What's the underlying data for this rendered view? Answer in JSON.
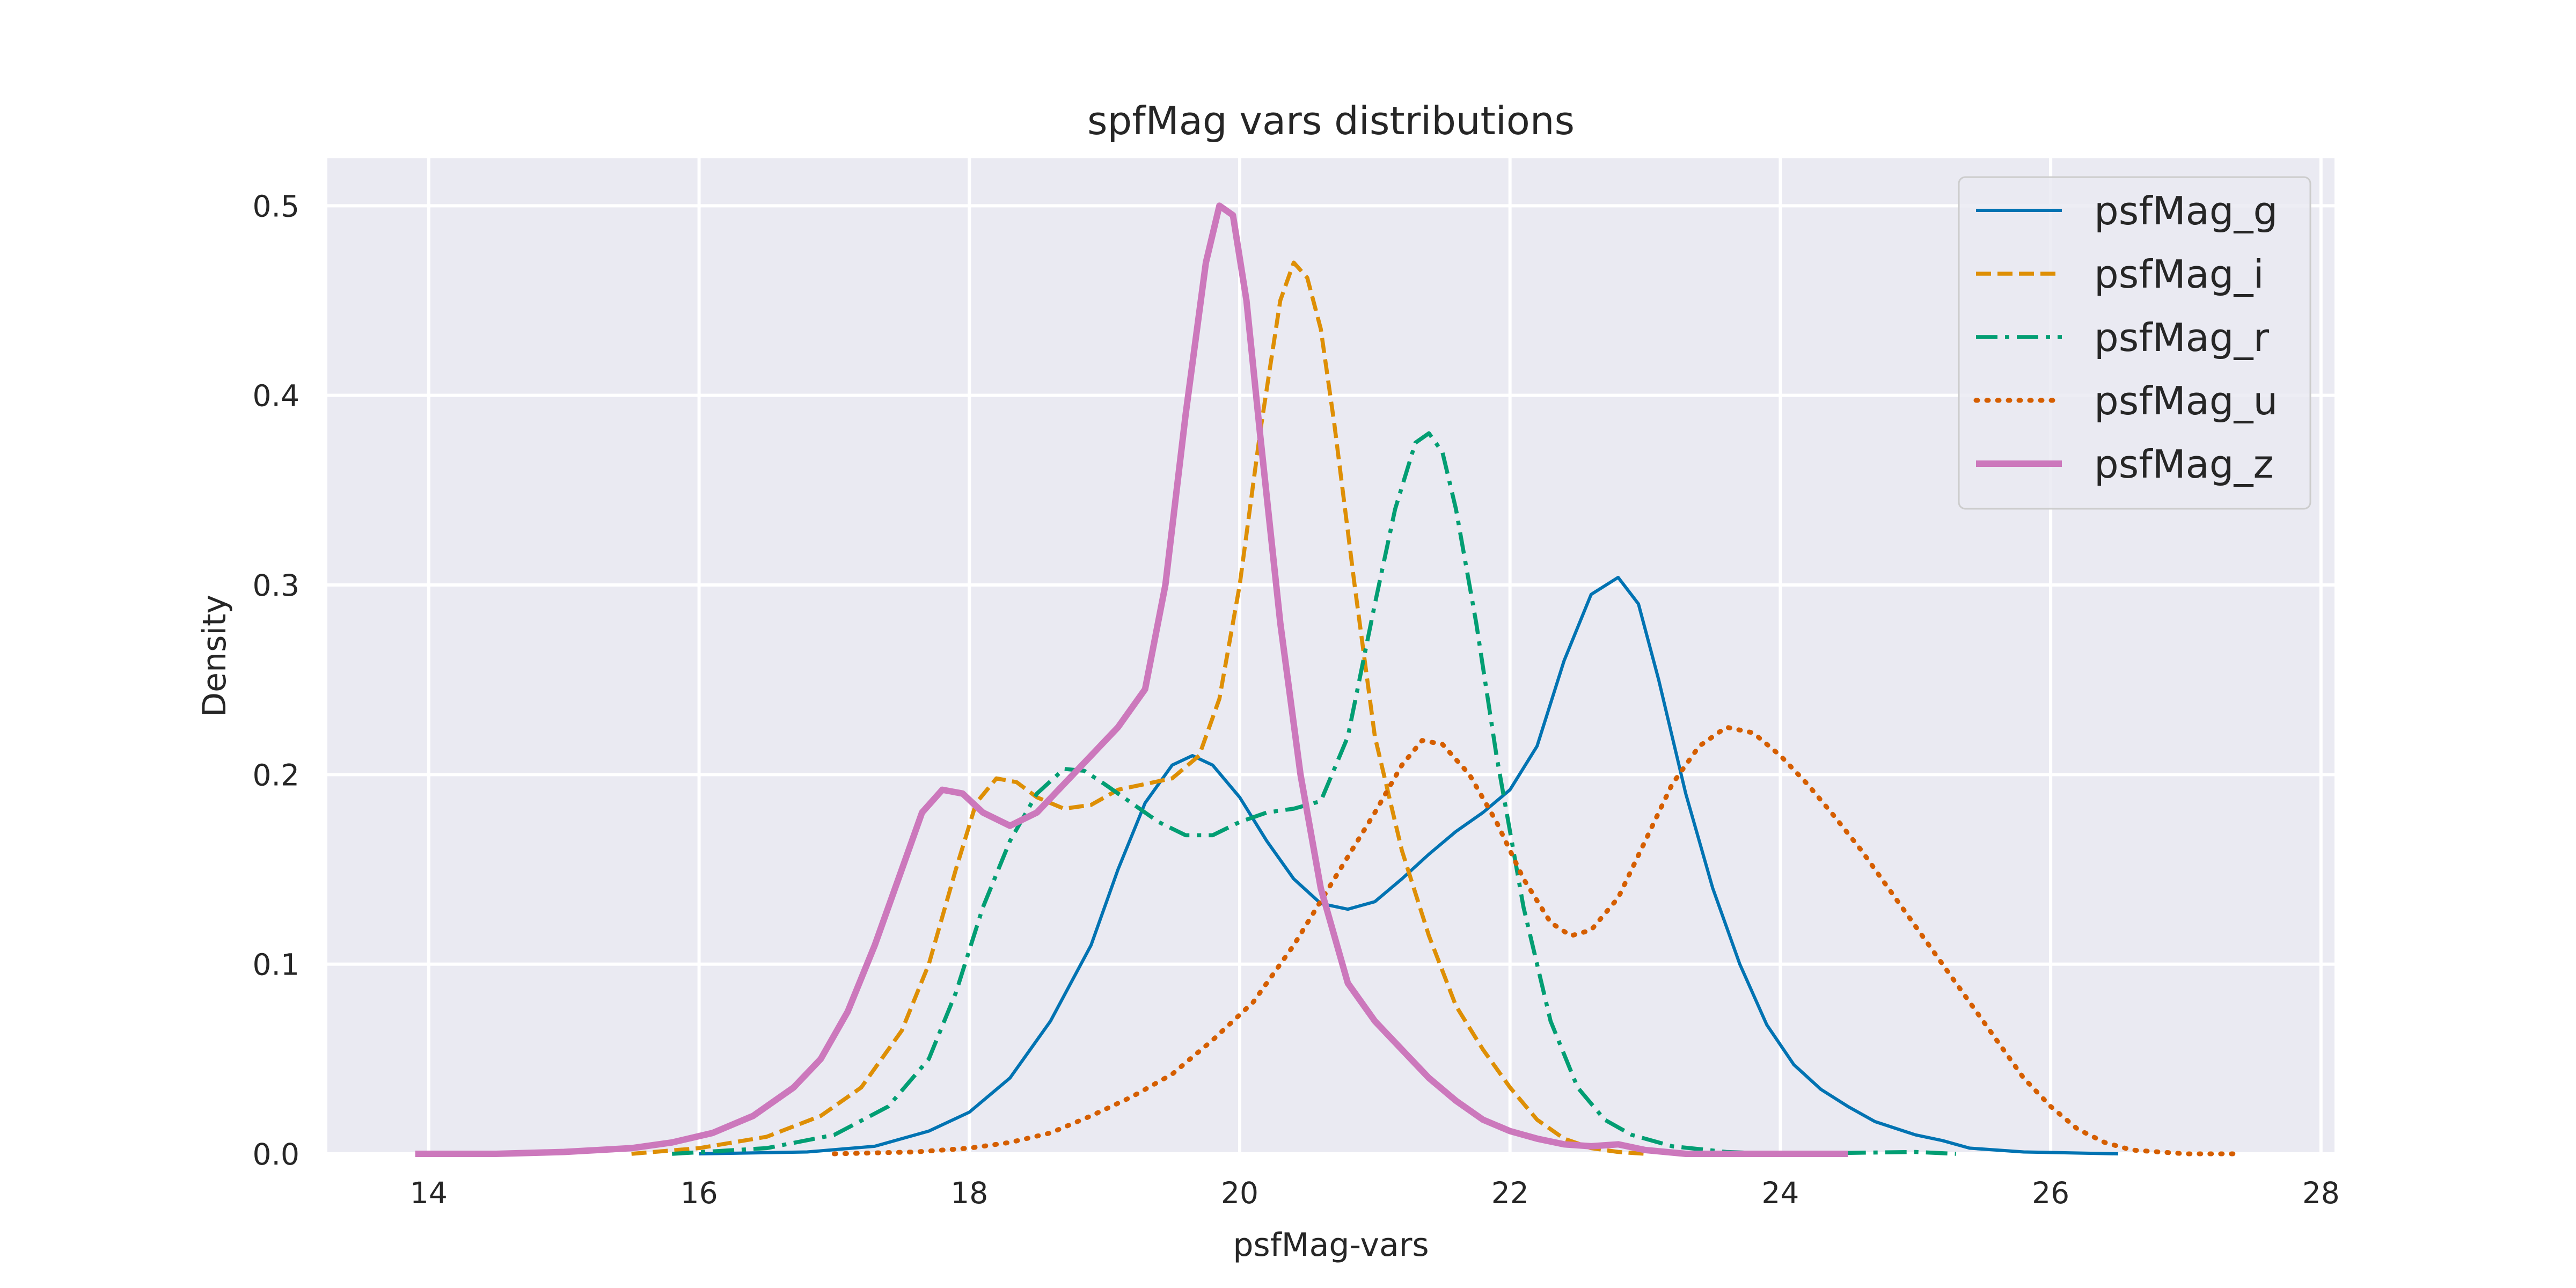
{
  "chart_data": {
    "type": "line",
    "title": "spfMag vars distributions",
    "xlabel": "psfMag-vars",
    "ylabel": "Density",
    "xlim": [
      13.25,
      28.1
    ],
    "ylim": [
      0,
      0.525
    ],
    "x_ticks": [
      14,
      16,
      18,
      20,
      22,
      24,
      26,
      28
    ],
    "y_ticks": [
      0.0,
      0.1,
      0.2,
      0.3,
      0.4,
      0.5
    ],
    "x_tick_labels": [
      "14",
      "16",
      "18",
      "20",
      "22",
      "24",
      "26",
      "28"
    ],
    "y_tick_labels": [
      "0.0",
      "0.1",
      "0.2",
      "0.3",
      "0.4",
      "0.5"
    ],
    "grid": true,
    "legend_position": "top-right",
    "background": "#eaeaf2",
    "series": [
      {
        "name": "psfMag_g",
        "color": "#0173b2",
        "style": "solid",
        "points": [
          [
            16.0,
            0.0
          ],
          [
            16.8,
            0.001
          ],
          [
            17.3,
            0.004
          ],
          [
            17.7,
            0.012
          ],
          [
            18.0,
            0.022
          ],
          [
            18.3,
            0.04
          ],
          [
            18.6,
            0.07
          ],
          [
            18.9,
            0.11
          ],
          [
            19.1,
            0.15
          ],
          [
            19.3,
            0.185
          ],
          [
            19.5,
            0.205
          ],
          [
            19.65,
            0.21
          ],
          [
            19.8,
            0.205
          ],
          [
            20.0,
            0.188
          ],
          [
            20.2,
            0.165
          ],
          [
            20.4,
            0.145
          ],
          [
            20.6,
            0.132
          ],
          [
            20.8,
            0.129
          ],
          [
            21.0,
            0.133
          ],
          [
            21.2,
            0.145
          ],
          [
            21.4,
            0.158
          ],
          [
            21.6,
            0.17
          ],
          [
            21.8,
            0.18
          ],
          [
            22.0,
            0.192
          ],
          [
            22.2,
            0.215
          ],
          [
            22.4,
            0.26
          ],
          [
            22.6,
            0.295
          ],
          [
            22.8,
            0.304
          ],
          [
            22.95,
            0.29
          ],
          [
            23.1,
            0.25
          ],
          [
            23.3,
            0.19
          ],
          [
            23.5,
            0.14
          ],
          [
            23.7,
            0.1
          ],
          [
            23.9,
            0.068
          ],
          [
            24.1,
            0.047
          ],
          [
            24.3,
            0.034
          ],
          [
            24.5,
            0.025
          ],
          [
            24.7,
            0.017
          ],
          [
            25.0,
            0.01
          ],
          [
            25.2,
            0.007
          ],
          [
            25.4,
            0.003
          ],
          [
            25.8,
            0.001
          ],
          [
            26.5,
            0.0
          ]
        ]
      },
      {
        "name": "psfMag_i",
        "color": "#de8f05",
        "style": "dashed",
        "points": [
          [
            15.5,
            0.0
          ],
          [
            16.0,
            0.003
          ],
          [
            16.5,
            0.009
          ],
          [
            16.9,
            0.02
          ],
          [
            17.2,
            0.035
          ],
          [
            17.5,
            0.065
          ],
          [
            17.7,
            0.1
          ],
          [
            17.9,
            0.15
          ],
          [
            18.05,
            0.185
          ],
          [
            18.2,
            0.198
          ],
          [
            18.35,
            0.196
          ],
          [
            18.5,
            0.188
          ],
          [
            18.7,
            0.182
          ],
          [
            18.9,
            0.184
          ],
          [
            19.1,
            0.192
          ],
          [
            19.3,
            0.195
          ],
          [
            19.5,
            0.198
          ],
          [
            19.7,
            0.21
          ],
          [
            19.85,
            0.24
          ],
          [
            20.0,
            0.3
          ],
          [
            20.15,
            0.38
          ],
          [
            20.3,
            0.45
          ],
          [
            20.4,
            0.47
          ],
          [
            20.5,
            0.462
          ],
          [
            20.6,
            0.435
          ],
          [
            20.7,
            0.385
          ],
          [
            20.85,
            0.3
          ],
          [
            21.0,
            0.22
          ],
          [
            21.2,
            0.16
          ],
          [
            21.4,
            0.115
          ],
          [
            21.6,
            0.078
          ],
          [
            21.8,
            0.055
          ],
          [
            22.0,
            0.035
          ],
          [
            22.2,
            0.018
          ],
          [
            22.4,
            0.008
          ],
          [
            22.6,
            0.003
          ],
          [
            22.8,
            0.001
          ],
          [
            23.0,
            0.0
          ]
        ]
      },
      {
        "name": "psfMag_r",
        "color": "#029e73",
        "style": "dashdot",
        "points": [
          [
            15.8,
            0.0
          ],
          [
            16.5,
            0.003
          ],
          [
            17.0,
            0.01
          ],
          [
            17.4,
            0.025
          ],
          [
            17.7,
            0.05
          ],
          [
            17.9,
            0.085
          ],
          [
            18.1,
            0.13
          ],
          [
            18.3,
            0.165
          ],
          [
            18.5,
            0.19
          ],
          [
            18.7,
            0.203
          ],
          [
            18.85,
            0.202
          ],
          [
            19.0,
            0.195
          ],
          [
            19.2,
            0.185
          ],
          [
            19.4,
            0.175
          ],
          [
            19.6,
            0.168
          ],
          [
            19.8,
            0.168
          ],
          [
            20.0,
            0.175
          ],
          [
            20.2,
            0.18
          ],
          [
            20.4,
            0.182
          ],
          [
            20.6,
            0.186
          ],
          [
            20.8,
            0.22
          ],
          [
            21.0,
            0.29
          ],
          [
            21.15,
            0.34
          ],
          [
            21.3,
            0.375
          ],
          [
            21.4,
            0.38
          ],
          [
            21.5,
            0.37
          ],
          [
            21.6,
            0.34
          ],
          [
            21.75,
            0.28
          ],
          [
            21.9,
            0.21
          ],
          [
            22.1,
            0.13
          ],
          [
            22.3,
            0.07
          ],
          [
            22.5,
            0.035
          ],
          [
            22.7,
            0.018
          ],
          [
            22.9,
            0.01
          ],
          [
            23.2,
            0.004
          ],
          [
            23.6,
            0.001
          ],
          [
            24.0,
            0.0
          ],
          [
            25.0,
            0.001
          ],
          [
            25.3,
            0.0
          ]
        ]
      },
      {
        "name": "psfMag_u",
        "color": "#d55e00",
        "style": "dotted",
        "points": [
          [
            17.0,
            0.0
          ],
          [
            17.6,
            0.001
          ],
          [
            18.0,
            0.003
          ],
          [
            18.3,
            0.006
          ],
          [
            18.6,
            0.011
          ],
          [
            18.9,
            0.02
          ],
          [
            19.2,
            0.03
          ],
          [
            19.5,
            0.042
          ],
          [
            19.8,
            0.06
          ],
          [
            20.1,
            0.08
          ],
          [
            20.4,
            0.11
          ],
          [
            20.7,
            0.145
          ],
          [
            21.0,
            0.18
          ],
          [
            21.2,
            0.205
          ],
          [
            21.35,
            0.218
          ],
          [
            21.5,
            0.216
          ],
          [
            21.7,
            0.2
          ],
          [
            21.9,
            0.175
          ],
          [
            22.1,
            0.145
          ],
          [
            22.3,
            0.122
          ],
          [
            22.45,
            0.115
          ],
          [
            22.6,
            0.118
          ],
          [
            22.8,
            0.135
          ],
          [
            23.0,
            0.165
          ],
          [
            23.2,
            0.195
          ],
          [
            23.4,
            0.215
          ],
          [
            23.6,
            0.225
          ],
          [
            23.8,
            0.222
          ],
          [
            24.0,
            0.21
          ],
          [
            24.2,
            0.195
          ],
          [
            24.4,
            0.178
          ],
          [
            24.6,
            0.16
          ],
          [
            24.8,
            0.14
          ],
          [
            25.0,
            0.12
          ],
          [
            25.2,
            0.1
          ],
          [
            25.4,
            0.08
          ],
          [
            25.6,
            0.06
          ],
          [
            25.8,
            0.04
          ],
          [
            26.0,
            0.025
          ],
          [
            26.2,
            0.013
          ],
          [
            26.4,
            0.006
          ],
          [
            26.6,
            0.002
          ],
          [
            27.0,
            0.0
          ],
          [
            27.4,
            0.0
          ]
        ]
      },
      {
        "name": "psfMag_z",
        "color": "#cc78bc",
        "style": "solid-thick",
        "points": [
          [
            13.9,
            0.0
          ],
          [
            14.5,
            0.0
          ],
          [
            15.0,
            0.001
          ],
          [
            15.5,
            0.003
          ],
          [
            15.8,
            0.006
          ],
          [
            16.1,
            0.011
          ],
          [
            16.4,
            0.02
          ],
          [
            16.7,
            0.035
          ],
          [
            16.9,
            0.05
          ],
          [
            17.1,
            0.075
          ],
          [
            17.3,
            0.11
          ],
          [
            17.5,
            0.15
          ],
          [
            17.65,
            0.18
          ],
          [
            17.8,
            0.192
          ],
          [
            17.95,
            0.19
          ],
          [
            18.1,
            0.18
          ],
          [
            18.3,
            0.173
          ],
          [
            18.5,
            0.18
          ],
          [
            18.7,
            0.195
          ],
          [
            18.9,
            0.21
          ],
          [
            19.1,
            0.225
          ],
          [
            19.3,
            0.245
          ],
          [
            19.45,
            0.3
          ],
          [
            19.6,
            0.39
          ],
          [
            19.75,
            0.47
          ],
          [
            19.85,
            0.5
          ],
          [
            19.95,
            0.495
          ],
          [
            20.05,
            0.45
          ],
          [
            20.15,
            0.38
          ],
          [
            20.3,
            0.28
          ],
          [
            20.45,
            0.2
          ],
          [
            20.6,
            0.14
          ],
          [
            20.8,
            0.09
          ],
          [
            21.0,
            0.07
          ],
          [
            21.2,
            0.055
          ],
          [
            21.4,
            0.04
          ],
          [
            21.6,
            0.028
          ],
          [
            21.8,
            0.018
          ],
          [
            22.0,
            0.012
          ],
          [
            22.2,
            0.008
          ],
          [
            22.4,
            0.005
          ],
          [
            22.6,
            0.004
          ],
          [
            22.8,
            0.005
          ],
          [
            23.0,
            0.002
          ],
          [
            23.3,
            0.0
          ],
          [
            24.5,
            0.0
          ]
        ]
      }
    ]
  }
}
